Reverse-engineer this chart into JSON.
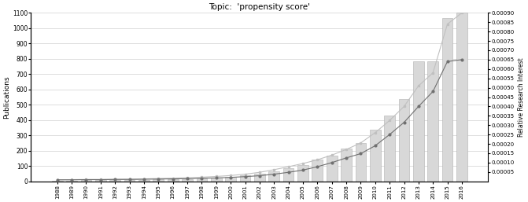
{
  "title": "Topic:  'propensity score'",
  "years": [
    1988,
    1989,
    1990,
    1991,
    1992,
    1993,
    1994,
    1995,
    1996,
    1997,
    1998,
    1999,
    2000,
    2001,
    2002,
    2003,
    2004,
    2005,
    2006,
    2007,
    2008,
    2009,
    2010,
    2011,
    2012,
    2013,
    2014,
    2015,
    2016
  ],
  "bar_values": [
    5,
    5,
    6,
    6,
    7,
    8,
    10,
    12,
    14,
    16,
    20,
    25,
    30,
    38,
    50,
    65,
    85,
    105,
    140,
    170,
    215,
    250,
    335,
    430,
    535,
    785,
    785,
    1065,
    1100
  ],
  "line1_values": [
    8e-06,
    9e-06,
    1e-05,
    1e-05,
    1.1e-05,
    1.2e-05,
    1.3e-05,
    1.5e-05,
    1.7e-05,
    1.9e-05,
    2.2e-05,
    2.6e-05,
    3.1e-05,
    3.8e-05,
    4.8e-05,
    6.2e-05,
    7.8e-05,
    9.5e-05,
    0.000115,
    0.00014,
    0.00017,
    0.000205,
    0.00026,
    0.000325,
    0.0004,
    0.00051,
    0.00058,
    0.00084,
    0.0009
  ],
  "line2_values": [
    8e-06,
    8e-06,
    9e-06,
    9e-06,
    1e-05,
    1e-05,
    1.1e-05,
    1.2e-05,
    1.3e-05,
    1.4e-05,
    1.6e-05,
    1.8e-05,
    2.1e-05,
    2.5e-05,
    3e-05,
    3.8e-05,
    4.8e-05,
    6e-05,
    7.8e-05,
    0.0001,
    0.000125,
    0.000148,
    0.00019,
    0.00025,
    0.000315,
    0.0004,
    0.00048,
    0.00064,
    0.00065
  ],
  "bar_color": "#d8d8d8",
  "bar_edgecolor": "#b0b0b0",
  "line1_color": "#c0c0c0",
  "line2_color": "#707070",
  "ylabel_left": "Publications",
  "ylabel_right": "Relative Research Interest",
  "ylim_left": [
    0,
    1100
  ],
  "ylim_right": [
    0.0,
    0.0009
  ],
  "yticks_left": [
    0,
    100,
    200,
    300,
    400,
    500,
    600,
    700,
    800,
    900,
    1000,
    1100
  ],
  "yticks_right": [
    5e-05,
    0.0001,
    0.00015,
    0.0002,
    0.00025,
    0.0003,
    0.00035,
    0.0004,
    0.00045,
    0.0005,
    0.00055,
    0.0006,
    0.00065,
    0.0007,
    0.00075,
    0.0008,
    0.00085,
    0.0009
  ],
  "background_color": "#ffffff",
  "grid_color": "#d0d0d0"
}
